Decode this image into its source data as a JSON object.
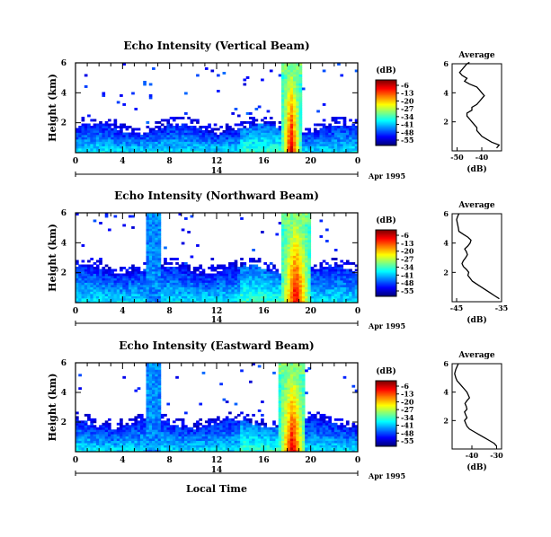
{
  "figure": {
    "xlabel": "Local Time",
    "date_label": "Apr 1995",
    "day_label": "14",
    "cbar_unit": "(dB)",
    "avg_title": "Average",
    "avg_xlabel": "(dB)"
  },
  "chart_data": [
    {
      "type": "heatmap",
      "title": "Echo Intensity (Vertical Beam)",
      "xlabel": "Local Time",
      "ylabel": "Height (km)",
      "x_ticks": [
        "0",
        "4",
        "8",
        "12",
        "16",
        "20",
        "0"
      ],
      "y_ticks": [
        "6",
        "4",
        "2"
      ],
      "xlim": [
        0,
        24
      ],
      "ylim": [
        0,
        6
      ],
      "colorbar_ticks": [
        "-6",
        "-13",
        "-20",
        "-27",
        "-34",
        "-41",
        "-48",
        "-55"
      ],
      "colorbar_range": [
        -55,
        -6
      ],
      "features": {
        "low_layer_top_km": 1.6,
        "precip_band_hours": [
          17.5,
          19.2
        ],
        "precip_top_km": 6.0
      }
    },
    {
      "type": "line",
      "title": "Average",
      "xlabel": "(dB)",
      "x_ticks": [
        "-50",
        "-40"
      ],
      "y_ticks": [
        "6",
        "4",
        "2"
      ],
      "xlim": [
        -52,
        -32
      ],
      "ylim": [
        0,
        6
      ],
      "x": [
        -34,
        -33,
        -36,
        -38,
        -40,
        -41,
        -42,
        -42,
        -43,
        -44,
        -45,
        -46,
        -46,
        -44,
        -44,
        -42,
        -41,
        -40,
        -39,
        -40,
        -41,
        -42,
        -45,
        -47,
        -46,
        -48,
        -49,
        -48,
        -47,
        -46,
        -45
      ],
      "y": [
        0.2,
        0.4,
        0.6,
        0.8,
        1.0,
        1.2,
        1.4,
        1.6,
        1.8,
        2.0,
        2.2,
        2.4,
        2.6,
        2.8,
        3.0,
        3.2,
        3.4,
        3.6,
        3.8,
        4.0,
        4.2,
        4.4,
        4.6,
        4.8,
        5.0,
        5.2,
        5.4,
        5.6,
        5.8,
        6.0,
        6.1
      ]
    },
    {
      "type": "heatmap",
      "title": "Echo Intensity (Northward Beam)",
      "xlabel": "Local Time",
      "ylabel": "Height (km)",
      "x_ticks": [
        "0",
        "4",
        "8",
        "12",
        "16",
        "20",
        "0"
      ],
      "y_ticks": [
        "6",
        "4",
        "2"
      ],
      "xlim": [
        0,
        24
      ],
      "ylim": [
        0,
        6
      ],
      "colorbar_ticks": [
        "-6",
        "-13",
        "-20",
        "-27",
        "-34",
        "-41",
        "-48",
        "-55"
      ],
      "colorbar_range": [
        -55,
        -6
      ],
      "features": {
        "low_layer_top_km": 2.2,
        "precip_band_hours": [
          17.5,
          20.0
        ],
        "precip_top_km": 6.0
      }
    },
    {
      "type": "line",
      "title": "Average",
      "xlabel": "(dB)",
      "x_ticks": [
        "-45",
        "-35"
      ],
      "y_ticks": [
        "6",
        "4",
        "2"
      ],
      "xlim": [
        -46,
        -35
      ],
      "ylim": [
        0,
        6
      ],
      "x": [
        -35.5,
        -36.5,
        -37.5,
        -38.5,
        -39.5,
        -40.5,
        -41.5,
        -42,
        -42.5,
        -42.3,
        -42.8,
        -43.5,
        -43.8,
        -43.5,
        -43,
        -42.6,
        -42.8,
        -43.2,
        -42.5,
        -42,
        -41.8,
        -42.5,
        -43.5,
        -44.5,
        -44.6,
        -44.8,
        -45,
        -44.8,
        -44.5
      ],
      "y": [
        0.2,
        0.4,
        0.6,
        0.8,
        1.0,
        1.2,
        1.4,
        1.6,
        1.8,
        2.0,
        2.2,
        2.4,
        2.6,
        2.8,
        3.0,
        3.2,
        3.4,
        3.6,
        3.8,
        4.0,
        4.2,
        4.4,
        4.6,
        4.8,
        5.0,
        5.3,
        5.6,
        5.8,
        6.0
      ]
    },
    {
      "type": "heatmap",
      "title": "Echo Intensity (Eastward Beam)",
      "xlabel": "Local Time",
      "ylabel": "Height (km)",
      "x_ticks": [
        "0",
        "4",
        "8",
        "12",
        "16",
        "20",
        "0"
      ],
      "y_ticks": [
        "6",
        "4",
        "2"
      ],
      "xlim": [
        0,
        24
      ],
      "ylim": [
        0,
        6
      ],
      "colorbar_ticks": [
        "-6",
        "-13",
        "-20",
        "-27",
        "-34",
        "-41",
        "-48",
        "-55"
      ],
      "colorbar_range": [
        -55,
        -6
      ],
      "features": {
        "low_layer_top_km": 1.9,
        "precip_band_hours": [
          17.3,
          19.6
        ],
        "precip_top_km": 6.0
      }
    },
    {
      "type": "line",
      "title": "Average",
      "xlabel": "(dB)",
      "x_ticks": [
        "-40",
        "-30"
      ],
      "y_ticks": [
        "6",
        "4",
        "2"
      ],
      "xlim": [
        -48,
        -28
      ],
      "ylim": [
        0,
        6
      ],
      "x": [
        -30,
        -31,
        -33,
        -35,
        -37,
        -39,
        -41,
        -42,
        -42.5,
        -43,
        -42,
        -42.5,
        -43,
        -42,
        -42.3,
        -42.8,
        -42,
        -41,
        -41.5,
        -42,
        -43,
        -44,
        -45,
        -46,
        -46.5,
        -47,
        -46.5,
        -46,
        -45.5
      ],
      "y": [
        0.2,
        0.4,
        0.6,
        0.8,
        1.0,
        1.2,
        1.4,
        1.6,
        1.8,
        2.0,
        2.2,
        2.4,
        2.6,
        2.8,
        3.0,
        3.2,
        3.4,
        3.6,
        3.8,
        4.0,
        4.2,
        4.4,
        4.6,
        4.8,
        5.0,
        5.3,
        5.6,
        5.8,
        6.0
      ]
    }
  ]
}
